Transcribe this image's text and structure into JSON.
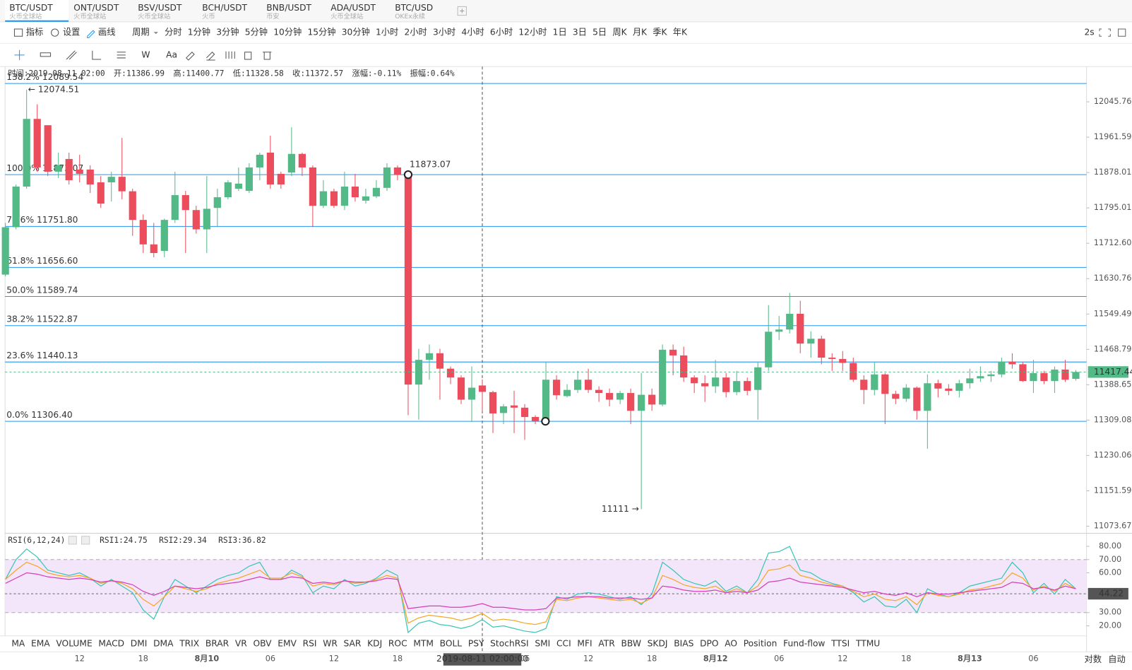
{
  "tabs": [
    {
      "symbol": "BTC/USDT",
      "exchange": "火币全球站"
    },
    {
      "symbol": "ONT/USDT",
      "exchange": "火币全球站"
    },
    {
      "symbol": "BSV/USDT",
      "exchange": "火币全球站"
    },
    {
      "symbol": "BCH/USDT",
      "exchange": "火币"
    },
    {
      "symbol": "BNB/USDT",
      "exchange": "币安"
    },
    {
      "symbol": "ADA/USDT",
      "exchange": "火币全球站"
    },
    {
      "symbol": "BTC/USD",
      "exchange": "OKEx永续"
    }
  ],
  "toolbar": {
    "indicator": "指标",
    "settings": "设置",
    "draw": "画线",
    "period": "周期",
    "periods": [
      "分时",
      "1分钟",
      "3分钟",
      "5分钟",
      "10分钟",
      "15分钟",
      "30分钟",
      "1小时",
      "2小时",
      "3小时",
      "4小时",
      "6小时",
      "12小时",
      "1日",
      "3日",
      "5日",
      "周K",
      "月K",
      "季K",
      "年K"
    ],
    "active_period": "1小时",
    "refresh": "2s"
  },
  "draw_tools": {
    "wave": "W",
    "text": "Aa"
  },
  "info": [
    "时间:2019-08-11 02:00",
    "开:11386.99",
    "高:11400.77",
    "低:11328.58",
    "收:11372.57",
    "涨幅:",
    "-0.11%",
    "振幅:0.64%"
  ],
  "indicators": [
    "MA",
    "EMA",
    "VOLUME",
    "MACD",
    "DMI",
    "DMA",
    "TRIX",
    "BRAR",
    "VR",
    "OBV",
    "EMV",
    "RSI",
    "WR",
    "SAR",
    "KDJ",
    "ROC",
    "MTM",
    "BOLL",
    "PSY",
    "StochRSI",
    "SMI",
    "CCI",
    "MFI",
    "ATR",
    "BBW",
    "SKDJ",
    "BIAS",
    "DPO",
    "AO",
    "Position",
    "Fund-flow",
    "TTSI",
    "TTMU"
  ],
  "active_indicator": "RSI",
  "axis_options": [
    "对数",
    "自动"
  ],
  "chart_data": [
    {
      "type": "candlestick",
      "log": true,
      "up_color": "#53b987",
      "down_color": "#eb4d5c",
      "crosshair_index": 45,
      "categories": [
        null,
        null,
        null,
        null,
        null,
        null,
        null,
        "12",
        null,
        null,
        null,
        null,
        null,
        "18",
        null,
        null,
        null,
        null,
        null,
        "8月10",
        null,
        null,
        null,
        null,
        null,
        "06",
        null,
        null,
        null,
        null,
        null,
        "12",
        null,
        null,
        null,
        null,
        null,
        "18",
        null,
        null,
        null,
        null,
        null,
        null,
        null,
        "2019-08-11 02:00:00",
        null,
        null,
        null,
        "06",
        null,
        null,
        null,
        null,
        null,
        "12",
        null,
        null,
        null,
        null,
        null,
        "18",
        null,
        null,
        null,
        null,
        null,
        "8月12",
        null,
        null,
        null,
        null,
        null,
        "06",
        null,
        null,
        null,
        null,
        null,
        "12",
        null,
        null,
        null,
        null,
        null,
        "18",
        null,
        null,
        null,
        null,
        null,
        "8月13",
        null,
        null,
        null,
        null,
        null,
        "06",
        null,
        null,
        null,
        null
      ],
      "open": [
        11640,
        11750,
        11845,
        12005,
        11990,
        11880,
        11910,
        11885,
        11885,
        11855,
        11855,
        11868,
        11834,
        11767,
        11710,
        11695,
        11767,
        11825,
        11790,
        11745,
        11795,
        11820,
        11840,
        11835,
        11890,
        11925,
        11875,
        11878,
        11922,
        11890,
        11800,
        11834,
        11800,
        11845,
        11812,
        11822,
        11842,
        11890,
        11873.07,
        11389,
        11445,
        11460,
        11425,
        11405,
        11355,
        11386.99,
        11372,
        11325,
        11342,
        11337,
        11316,
        11306.4,
        11400,
        11363,
        11377,
        11400,
        11377,
        11370,
        11355,
        11370,
        11330,
        11366,
        11344,
        11468,
        11455,
        11405,
        11392,
        11385,
        11405,
        11372,
        11397,
        11377,
        11428,
        11509,
        11514,
        11550,
        11482,
        11493,
        11450,
        11447,
        11438,
        11400,
        11377,
        11412,
        11368,
        11357,
        11382,
        11330,
        11392,
        11380,
        11375,
        11392,
        11403,
        11408,
        11412,
        11441,
        11435,
        11397,
        11415,
        11397,
        11423,
        11402
      ],
      "high": [
        11760,
        11850,
        12074.51,
        12040,
        11990,
        11925,
        11925,
        11920,
        11895,
        11870,
        11880,
        11960,
        11840,
        11780,
        11760,
        11770,
        11880,
        11835,
        11800,
        11870,
        11840,
        11860,
        11890,
        11900,
        11925,
        11965,
        11880,
        11985,
        11925,
        11895,
        11860,
        11840,
        11880,
        11875,
        11840,
        11860,
        11900,
        11895,
        11878,
        11470,
        11480,
        11470,
        11430,
        11410,
        11430,
        11400.77,
        11375,
        11345,
        11375,
        11345,
        11320,
        11440,
        11410,
        11390,
        11420,
        11425,
        11385,
        11380,
        11375,
        11380,
        11415,
        11380,
        11480,
        11480,
        11475,
        11410,
        11410,
        11445,
        11415,
        11420,
        11405,
        11440,
        11570,
        11545,
        11598,
        11580,
        11510,
        11500,
        11460,
        11465,
        11450,
        11410,
        11440,
        11415,
        11375,
        11390,
        11385,
        11412,
        11400,
        11390,
        11400,
        11425,
        11430,
        11420,
        11450,
        11460,
        11440,
        11445,
        11420,
        11430,
        11445,
        11422
      ],
      "low": [
        11636,
        11745,
        11840,
        11880,
        11870,
        11865,
        11850,
        11855,
        11830,
        11795,
        11810,
        11815,
        11730,
        11690,
        11680,
        11680,
        11760,
        11690,
        11735,
        11690,
        11750,
        11815,
        11835,
        11830,
        11860,
        11840,
        11840,
        11870,
        11870,
        11750,
        11795,
        11795,
        11790,
        11810,
        11805,
        11818,
        11835,
        11860,
        11320,
        11310,
        11400,
        11355,
        11390,
        11345,
        11305,
        11328.58,
        11280,
        11300,
        11280,
        11265,
        11300,
        11300,
        11355,
        11360,
        11370,
        11370,
        11350,
        11340,
        11345,
        11300,
        11111,
        11330,
        11340,
        11410,
        11395,
        11370,
        11350,
        11370,
        11360,
        11365,
        11365,
        11310,
        11420,
        11490,
        11505,
        11460,
        11450,
        11435,
        11420,
        11420,
        11395,
        11345,
        11365,
        11300,
        11345,
        11350,
        11310,
        11245,
        11360,
        11365,
        11360,
        11380,
        11395,
        11395,
        11405,
        11425,
        11395,
        11370,
        11390,
        11370,
        11395,
        11398
      ],
      "close": [
        11750,
        11845,
        12005,
        11890,
        11880,
        11895,
        11860,
        11875,
        11850,
        11805,
        11868,
        11834,
        11767,
        11710,
        11690,
        11767,
        11825,
        11790,
        11745,
        11793,
        11820,
        11855,
        11852,
        11890,
        11920,
        11850,
        11850,
        11922,
        11890,
        11800,
        11834,
        11800,
        11845,
        11820,
        11822,
        11842,
        11890,
        11873,
        11389,
        11445,
        11460,
        11425,
        11405,
        11355,
        11382,
        11372.57,
        11324,
        11340,
        11337,
        11316,
        11306.4,
        11400,
        11365,
        11377,
        11400,
        11377,
        11370,
        11355,
        11370,
        11330,
        11366,
        11344,
        11468,
        11455,
        11405,
        11392,
        11385,
        11405,
        11372,
        11397,
        11375,
        11428,
        11509,
        11514,
        11550,
        11482,
        11493,
        11450,
        11447,
        11438,
        11400,
        11377,
        11412,
        11368,
        11357,
        11382,
        11330,
        11392,
        11380,
        11375,
        11392,
        11403,
        11408,
        11412,
        11441,
        11435,
        11397,
        11415,
        11397,
        11423,
        11400,
        11417.44
      ],
      "ylim": [
        11058,
        12125
      ],
      "yticks": [
        12045.76,
        11961.59,
        11878.01,
        11795.01,
        {
          "value": 11712.6,
          "label": "11712.60"
        },
        11630.76,
        11549.49,
        11468.79,
        11388.65,
        11309.08,
        11230.06,
        11151.59,
        11073.67
      ],
      "fib_color": "#2196f3",
      "fib_levels": [
        {
          "ratio": "138.2%",
          "value": 12089.54
        },
        {
          "ratio": "100.0%",
          "value": 11873.07
        },
        {
          "ratio": "78.6%",
          "value": 11751.8,
          "label": "11751.80"
        },
        {
          "ratio": "61.8%",
          "value": 11656.6,
          "label": "11656.60"
        },
        {
          "ratio": "50.0%",
          "value": 11589.74
        },
        {
          "ratio": "38.2%",
          "value": 11522.87
        },
        {
          "ratio": "23.6%",
          "value": 11440.13
        },
        {
          "ratio": "0.0%",
          "value": 11306.4,
          "label": "11306.40"
        }
      ],
      "drawing_label": "11873.07",
      "high_marker": "← 12074.51",
      "low_marker": "11111 →",
      "last_price": 11417.44
    },
    {
      "type": "line",
      "title": "RSI(6,12,24)",
      "legend_labels": [
        "RSI1:24.75",
        "RSI2:29.34",
        "RSI3:36.82"
      ],
      "ylim": [
        12,
        88
      ],
      "yticks": [
        {
          "value": 20,
          "label": "20.00"
        },
        {
          "value": 30,
          "label": "30.00"
        },
        {
          "value": 60,
          "label": "60.00"
        },
        {
          "value": 70,
          "label": "70.00"
        },
        {
          "value": 80,
          "label": "80.00"
        }
      ],
      "band": [
        30,
        70
      ],
      "last_value": 44.22,
      "series": [
        {
          "name": "RSI1",
          "color": "#38c6b4",
          "values": [
            55,
            70,
            78,
            72,
            62,
            60,
            58,
            60,
            56,
            50,
            55,
            50,
            45,
            32,
            25,
            42,
            55,
            50,
            45,
            50,
            55,
            58,
            60,
            65,
            68,
            55,
            55,
            62,
            58,
            45,
            50,
            48,
            55,
            50,
            52,
            56,
            62,
            58,
            15,
            22,
            24,
            21,
            20,
            18,
            20,
            24.75,
            19,
            20,
            18,
            16,
            15,
            18,
            42,
            40,
            44,
            45,
            44,
            42,
            40,
            42,
            36,
            44,
            68,
            62,
            55,
            52,
            50,
            54,
            46,
            50,
            45,
            55,
            75,
            76,
            80,
            62,
            60,
            55,
            52,
            50,
            45,
            38,
            42,
            35,
            34,
            40,
            30,
            48,
            44,
            42,
            45,
            50,
            52,
            54,
            56,
            68,
            60,
            45,
            52,
            44,
            55,
            48
          ]
        },
        {
          "name": "RSI2",
          "color": "#f5a623",
          "values": [
            55,
            62,
            68,
            65,
            60,
            58,
            57,
            58,
            56,
            52,
            54,
            52,
            48,
            40,
            35,
            42,
            50,
            48,
            46,
            48,
            52,
            54,
            56,
            59,
            62,
            56,
            56,
            60,
            57,
            50,
            52,
            51,
            54,
            52,
            53,
            55,
            58,
            56,
            22,
            26,
            28,
            27,
            26,
            24,
            26,
            29.34,
            24,
            25,
            24,
            22,
            21,
            23,
            40,
            39,
            41,
            42,
            41,
            40,
            39,
            40,
            37,
            41,
            58,
            55,
            51,
            49,
            48,
            50,
            45,
            48,
            45,
            50,
            62,
            63,
            66,
            58,
            56,
            53,
            51,
            50,
            46,
            42,
            44,
            40,
            39,
            42,
            36,
            45,
            43,
            42,
            44,
            47,
            48,
            50,
            52,
            60,
            56,
            47,
            50,
            46,
            52,
            48
          ]
        },
        {
          "name": "RSI3",
          "color": "#d63fb8",
          "values": [
            52,
            56,
            60,
            59,
            57,
            56,
            55,
            56,
            55,
            53,
            54,
            53,
            51,
            46,
            43,
            46,
            50,
            49,
            48,
            49,
            51,
            52,
            53,
            55,
            57,
            55,
            55,
            57,
            56,
            52,
            53,
            52,
            54,
            53,
            53,
            54,
            56,
            55,
            33,
            34,
            35,
            35,
            34,
            34,
            35,
            36.82,
            34,
            34,
            33,
            32,
            32,
            33,
            41,
            41,
            42,
            42,
            42,
            41,
            41,
            41,
            40,
            41,
            50,
            49,
            47,
            46,
            46,
            47,
            45,
            46,
            45,
            47,
            53,
            54,
            56,
            53,
            52,
            51,
            50,
            49,
            47,
            45,
            46,
            44,
            43,
            45,
            42,
            45,
            44,
            44,
            45,
            46,
            47,
            48,
            49,
            53,
            52,
            48,
            49,
            47,
            50,
            48
          ]
        }
      ]
    }
  ]
}
